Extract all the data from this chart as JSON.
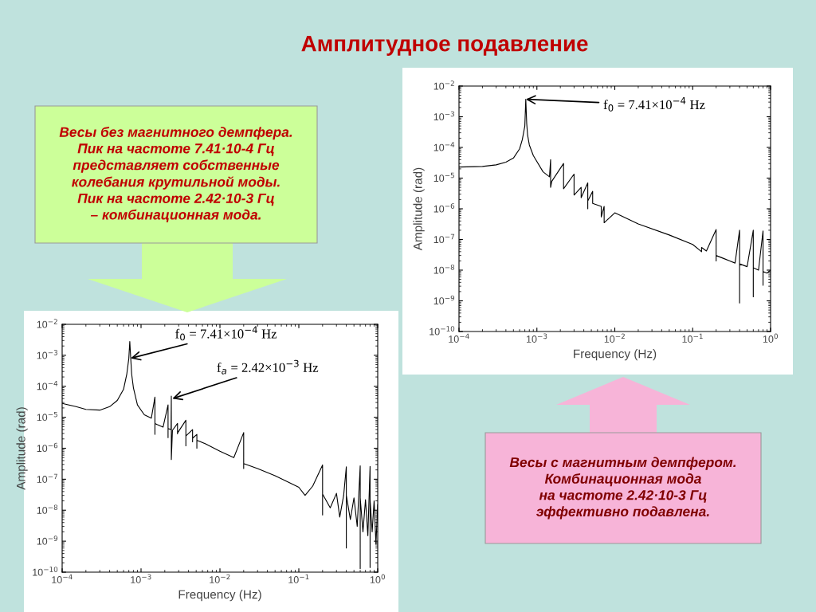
{
  "chart_data": [
    {
      "type": "line",
      "title": "Амплитудное подавление",
      "xlabel": "Frequency (Hz)",
      "ylabel": "Amplitude (rad)",
      "log": "xy",
      "grid": false,
      "legend": false,
      "annotations": [
        "Весы без магнитного демпфера.\nПик на частоте 7.41·10-4 Гц\nпредставляет собственные\nколебания крутильной моды.\nПик на частоте 2.42·10-3 Гц\n– комбинационная мода.",
        {
          "text": "f$_{0}$ = 7.41×10$^{−4}$ Hz",
          "x": 0.00074,
          "y": 0.0008
        },
        {
          "text": "f$_{a}$ = 2.42×10$^{−3}$ Hz",
          "x": 0.0025,
          "y": 4e-05
        }
      ],
      "xlim": [
        0.0001,
        1
      ],
      "ylim": [
        1e-10,
        0.01
      ],
      "xticks": [
        {
          "value": 0.0001,
          "label": "10$^{−4}$"
        },
        {
          "value": 0.001,
          "label": "10$^{−3}$"
        },
        {
          "value": 0.01,
          "label": "10$^{−2}$"
        },
        {
          "value": 0.1,
          "label": "10$^{−1}$"
        },
        {
          "value": 1,
          "label": "10$^{0}$"
        }
      ],
      "yticks": [
        {
          "value": 1e-10,
          "label": "10$^{−10}$"
        },
        {
          "value": 1e-09,
          "label": "10$^{−9}$"
        },
        {
          "value": 1e-08,
          "label": "10$^{−8}$"
        },
        {
          "value": 1e-07,
          "label": "10$^{−7}$"
        },
        {
          "value": 1e-06,
          "label": "10$^{−6}$"
        },
        {
          "value": 1e-05,
          "label": "10$^{−5}$"
        },
        {
          "value": 0.0001,
          "label": "10$^{−4}$"
        },
        {
          "value": 0.001,
          "label": "10$^{−3}$"
        },
        {
          "value": 0.01,
          "label": "10$^{−2}$"
        }
      ],
      "series": [
        {
          "color": "#000000",
          "x": [
            0.0001,
            0.00015,
            0.0002,
            0.0003,
            0.0004,
            0.0005,
            0.0006,
            0.00066,
            0.0007,
            0.00072,
            0.00074,
            0.00076,
            0.0008,
            0.0009,
            0.0011,
            0.00135,
            0.0015,
            0.0015,
            0.0015,
            0.0016,
            0.0019,
            0.0022,
            0.0022,
            0.0022,
            0.0024,
            0.00242,
            0.00242,
            0.0025,
            0.0029,
            0.0029,
            0.0029,
            0.0037,
            0.0037,
            0.0037,
            0.0045,
            0.0045,
            0.0045,
            0.0051,
            0.0051,
            0.0051,
            0.0065,
            0.01,
            0.015,
            0.02,
            0.02,
            0.02,
            0.03,
            0.05,
            0.07,
            0.1,
            0.12,
            0.15,
            0.2,
            0.2,
            0.2,
            0.25,
            0.3,
            0.33,
            0.37,
            0.4,
            0.4,
            0.4,
            0.45,
            0.5,
            0.55,
            0.6,
            0.6,
            0.6,
            0.65,
            0.7,
            0.75,
            0.8,
            0.8,
            0.8,
            0.85,
            0.9,
            0.95,
            1
          ],
          "values": [
            2.8e-05,
            2.2e-05,
            1.8e-05,
            1.7e-05,
            2.2e-05,
            3.5e-05,
            8e-05,
            0.00025,
            0.0008,
            0.0028,
            0.0008,
            0.00025,
            9e-05,
            2.5e-05,
            1.2e-05,
            9.3e-06,
            4.5e-05,
            2.8e-06,
            6.3e-06,
            5.8e-06,
            4.8e-06,
            2.5e-05,
            2.2e-06,
            4.3e-06,
            4e-06,
            4.8e-05,
            4.3e-07,
            3.8e-06,
            6.3e-06,
            2.9e-06,
            3.1e-06,
            8e-06,
            1.2e-06,
            2.5e-06,
            4e-06,
            1.6e-06,
            2.1e-06,
            2.8e-06,
            1e-06,
            1.8e-06,
            1.4e-06,
            8e-07,
            5e-07,
            3.2e-06,
            2.2e-07,
            3.2e-07,
            2.2e-07,
            1.3e-07,
            8.5e-08,
            5.5e-08,
            3e-08,
            6e-08,
            2.9e-07,
            7e-09,
            3.3e-08,
            1.2e-08,
            3.5e-08,
            6e-09,
            3e-08,
            2.5e-07,
            6e-10,
            3e-08,
            5e-09,
            2.5e-08,
            3e-09,
            2.7e-07,
            1.3e-10,
            2.5e-08,
            2e-09,
            2.2e-08,
            1.5e-09,
            2.6e-07,
            1.4e-10,
            2.2e-08,
            2e-09,
            2e-08,
            8e-10,
            1.5e-08
          ]
        }
      ]
    },
    {
      "type": "line",
      "xlabel": "Frequency (Hz)",
      "ylabel": "Amplitude (rad)",
      "log": "xy",
      "grid": false,
      "legend": false,
      "annotations": [
        "Весы с магнитным демпфером.\nКомбинационная мода\nна частоте 2.42·10-3 Гц\nэффективно подавлена.",
        {
          "text": "f$_{0}$ = 7.41×10$^{−4}$ Hz",
          "x": 0.00072,
          "y": 0.0037
        }
      ],
      "xlim": [
        0.0001,
        1
      ],
      "ylim": [
        1e-10,
        0.01
      ],
      "xticks": [
        {
          "value": 0.0001,
          "label": "10$^{−4}$"
        },
        {
          "value": 0.001,
          "label": "10$^{−3}$"
        },
        {
          "value": 0.01,
          "label": "10$^{−2}$"
        },
        {
          "value": 0.1,
          "label": "10$^{−1}$"
        },
        {
          "value": 1,
          "label": "10$^{0}$"
        }
      ],
      "yticks": [
        {
          "value": 1e-10,
          "label": "10$^{−10}$"
        },
        {
          "value": 1e-09,
          "label": "10$^{−9}$"
        },
        {
          "value": 1e-08,
          "label": "10$^{−8}$"
        },
        {
          "value": 1e-07,
          "label": "10$^{−7}$"
        },
        {
          "value": 1e-06,
          "label": "10$^{−6}$"
        },
        {
          "value": 1e-05,
          "label": "10$^{−5}$"
        },
        {
          "value": 0.0001,
          "label": "10$^{−4}$"
        },
        {
          "value": 0.001,
          "label": "10$^{−3}$"
        },
        {
          "value": 0.01,
          "label": "10$^{−2}$"
        }
      ],
      "series": [
        {
          "color": "#000000",
          "x": [
            0.0001,
            0.0002,
            0.0003,
            0.0004,
            0.0005,
            0.0006,
            0.00065,
            0.0007,
            0.00072,
            0.00074,
            0.00076,
            0.0008,
            0.0009,
            0.0012,
            0.00145,
            0.0015,
            0.0015,
            0.00155,
            0.0022,
            0.0022,
            0.0022,
            0.003,
            0.003,
            0.003,
            0.0037,
            0.0037,
            0.0045,
            0.0045,
            0.0045,
            0.0052,
            0.0052,
            0.0067,
            0.0067,
            0.0073,
            0.0073,
            0.01,
            0.02,
            0.05,
            0.1,
            0.13,
            0.13,
            0.15,
            0.2,
            0.2,
            0.2,
            0.25,
            0.3,
            0.35,
            0.4,
            0.4,
            0.4,
            0.5,
            0.6,
            0.6,
            0.6,
            0.7,
            0.8,
            0.8,
            0.8,
            0.9,
            1
          ],
          "values": [
            2.3e-05,
            2.4e-05,
            2.7e-05,
            3.3e-05,
            4.5e-05,
            9e-05,
            0.00018,
            0.0005,
            0.0037,
            0.0006,
            0.00025,
            0.00012,
            5.4e-05,
            1.6e-05,
            1.1e-05,
            4e-05,
            5e-06,
            7.8e-06,
            3e-05,
            4.5e-06,
            4.5e-06,
            1.35e-05,
            2.8e-06,
            2.8e-06,
            5e-06,
            2.3e-06,
            7e-06,
            1e-06,
            1.8e-06,
            3.7e-06,
            1.5e-06,
            1.2e-06,
            5.4e-07,
            1.2e-06,
            3.5e-07,
            7.4e-07,
            3.2e-07,
            1.4e-07,
            6.9e-08,
            4e-08,
            5.5e-08,
            4.2e-08,
            2.1e-07,
            2e-08,
            3e-08,
            2.4e-08,
            2e-08,
            1.7e-08,
            2e-07,
            8.5e-10,
            1.6e-08,
            1.3e-08,
            2e-07,
            1.35e-09,
            1.2e-08,
            1e-08,
            1.9e-07,
            3.2e-09,
            9e-09,
            8e-09,
            1e-08
          ]
        }
      ]
    }
  ]
}
